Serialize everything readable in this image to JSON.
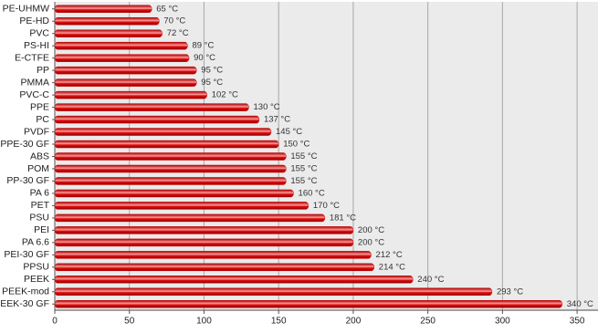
{
  "chart_data": {
    "type": "bar",
    "orientation": "horizontal",
    "categories": [
      "PE-UHMW",
      "PE-HD",
      "PVC",
      "PS-HI",
      "E-CTFE",
      "PP",
      "PMMA",
      "PVC-C",
      "PPE",
      "PC",
      "PVDF",
      "PPE-30 GF",
      "ABS",
      "POM",
      "PP-30 GF",
      "PA 6",
      "PET",
      "PSU",
      "PEI",
      "PA 6.6",
      "PEI-30 GF",
      "PPSU",
      "PEEK",
      "PEEK-mod",
      "PEEK-30 GF"
    ],
    "values": [
      65,
      70,
      72,
      89,
      90,
      95,
      95,
      102,
      130,
      137,
      145,
      150,
      155,
      155,
      155,
      160,
      170,
      181,
      200,
      200,
      212,
      214,
      240,
      293,
      340
    ],
    "value_labels": [
      "65 °C",
      "70 °C",
      "72 °C",
      "89 °C",
      "90 °C",
      "95 °C",
      "95 °C",
      "102 °C",
      "130 °C",
      "137 °C",
      "145 °C",
      "150 °C",
      "155 °C",
      "155 °C",
      "155 °C",
      "160 °C",
      "170 °C",
      "181 °C",
      "200 °C",
      "200 °C",
      "212 °C",
      "214 °C",
      "240 °C",
      "293 °C",
      "340 °C"
    ],
    "color": "#d40000",
    "xlim": [
      0,
      364
    ],
    "xticks": [
      0,
      50,
      100,
      150,
      200,
      250,
      300,
      350
    ],
    "grid": true
  }
}
